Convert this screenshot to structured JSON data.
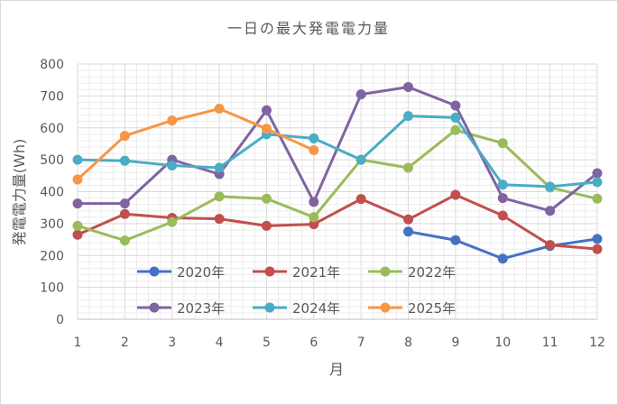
{
  "chart_data": {
    "type": "line",
    "title": "一日の最大発電電力量",
    "xlabel": "月",
    "ylabel": "発電電力量(Wh)",
    "x": [
      1,
      2,
      3,
      4,
      5,
      6,
      7,
      8,
      9,
      10,
      11,
      12
    ],
    "xticks": [
      "1",
      "2",
      "3",
      "4",
      "5",
      "6",
      "7",
      "8",
      "9",
      "10",
      "11",
      "12"
    ],
    "ylim": [
      0,
      800
    ],
    "yticks": [
      "0",
      "100",
      "200",
      "300",
      "400",
      "500",
      "600",
      "700",
      "800"
    ],
    "grid": true,
    "legend_position": "inside-bottom",
    "series": [
      {
        "name": "2020年",
        "color": "#4472c4",
        "values": [
          null,
          null,
          null,
          null,
          null,
          null,
          null,
          275,
          248,
          190,
          230,
          252
        ]
      },
      {
        "name": "2021年",
        "color": "#c0504d",
        "values": [
          265,
          330,
          318,
          315,
          293,
          298,
          377,
          313,
          390,
          325,
          233,
          220
        ]
      },
      {
        "name": "2022年",
        "color": "#9bbb59",
        "values": [
          293,
          247,
          305,
          385,
          378,
          320,
          500,
          475,
          593,
          552,
          413,
          378
        ]
      },
      {
        "name": "2023年",
        "color": "#8064a2",
        "values": [
          363,
          363,
          500,
          455,
          655,
          368,
          705,
          728,
          670,
          380,
          340,
          458
        ]
      },
      {
        "name": "2024年",
        "color": "#4bacc6",
        "values": [
          500,
          497,
          482,
          475,
          580,
          567,
          500,
          637,
          632,
          422,
          416,
          430
        ]
      },
      {
        "name": "2025年",
        "color": "#f79646",
        "values": [
          438,
          575,
          623,
          660,
          597,
          530,
          null,
          null,
          null,
          null,
          null,
          null
        ]
      }
    ]
  }
}
